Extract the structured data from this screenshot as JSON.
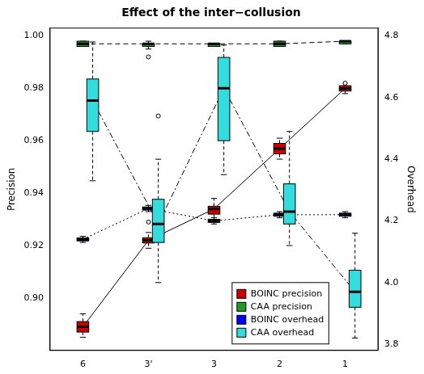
{
  "chart_data": {
    "type": "boxplot",
    "title": "Effect of the inter−collusion",
    "y_label": "Precision",
    "y2_label": "Overhead",
    "categories": [
      "6",
      "3'",
      "3",
      "2",
      "1"
    ],
    "ylim": [
      0.88,
      1.003
    ],
    "yticks": [
      {
        "value": 0.9,
        "label": "0.90"
      },
      0.92,
      0.94,
      0.96,
      0.98,
      {
        "value": 1.0,
        "label": "1.00"
      }
    ],
    "y2lim": [
      3.78,
      4.825
    ],
    "y2ticks": [
      3.8,
      {
        "value": 4.0,
        "label": "4.0"
      },
      4.2,
      4.4,
      4.6,
      4.8
    ],
    "grid": false,
    "legend": "bottom right",
    "series": [
      {
        "name": "BOINC precision",
        "color": "#cc0000",
        "line_style": "solid",
        "values": [
          {
            "min": 0.885,
            "q1": 0.887,
            "median": 0.889,
            "q3": 0.891,
            "max": 0.894,
            "outliers": []
          },
          {
            "min": 0.919,
            "q1": 0.921,
            "median": 0.922,
            "q3": 0.923,
            "max": 0.925,
            "outliers": [
              0.929
            ]
          },
          {
            "min": 0.93,
            "q1": 0.932,
            "median": 0.934,
            "q3": 0.935,
            "max": 0.938,
            "outliers": []
          },
          {
            "min": 0.953,
            "q1": 0.955,
            "median": 0.957,
            "q3": 0.959,
            "max": 0.961,
            "outliers": []
          },
          {
            "min": 0.978,
            "q1": 0.979,
            "median": 0.98,
            "q3": 0.981,
            "max": 0.981,
            "outliers": [
              0.982
            ]
          }
        ]
      },
      {
        "name": "CAA precision",
        "color": "#229922",
        "line_style": "dashed",
        "values": [
          {
            "min": 0.996,
            "q1": 0.996,
            "median": 0.997,
            "q3": 0.998,
            "max": 0.998,
            "outliers": []
          },
          {
            "min": 0.995,
            "q1": 0.996,
            "median": 0.997,
            "q3": 0.997,
            "max": 0.998,
            "outliers": [
              0.992
            ]
          },
          {
            "min": 0.996,
            "q1": 0.996,
            "median": 0.997,
            "q3": 0.997,
            "max": 0.997,
            "outliers": []
          },
          {
            "min": 0.996,
            "q1": 0.996,
            "median": 0.997,
            "q3": 0.998,
            "max": 0.998,
            "outliers": []
          },
          {
            "min": 0.997,
            "q1": 0.997,
            "median": 0.998,
            "q3": 0.998,
            "max": 0.998,
            "outliers": []
          }
        ]
      },
      {
        "name": "BOINC overhead",
        "color": "#0000ff",
        "line_style": "dotted",
        "axis": "y2",
        "values": [
          {
            "min": 4.13,
            "q1": 4.135,
            "median": 4.14,
            "q3": 4.145,
            "max": 4.15,
            "outliers": []
          },
          {
            "min": 4.23,
            "q1": 4.235,
            "median": 4.24,
            "q3": 4.245,
            "max": 4.25,
            "outliers": []
          },
          {
            "min": 4.19,
            "q1": 4.195,
            "median": 4.2,
            "q3": 4.205,
            "max": 4.21,
            "outliers": []
          },
          {
            "min": 4.21,
            "q1": 4.215,
            "median": 4.22,
            "q3": 4.225,
            "max": 4.23,
            "outliers": []
          },
          {
            "min": 4.21,
            "q1": 4.215,
            "median": 4.22,
            "q3": 4.225,
            "max": 4.23,
            "outliers": []
          }
        ]
      },
      {
        "name": "CAA overhead",
        "color": "#33dddd",
        "line_style": "dashdot",
        "axis": "y2",
        "values": [
          {
            "min": 4.33,
            "q1": 4.49,
            "median": 4.59,
            "q3": 4.66,
            "max": 4.78,
            "outliers": []
          },
          {
            "min": 4.0,
            "q1": 4.13,
            "median": 4.19,
            "q3": 4.27,
            "max": 4.4,
            "outliers": [
              4.54
            ]
          },
          {
            "min": 4.35,
            "q1": 4.46,
            "median": 4.63,
            "q3": 4.73,
            "max": 4.77,
            "outliers": []
          },
          {
            "min": 4.12,
            "q1": 4.19,
            "median": 4.23,
            "q3": 4.32,
            "max": 4.49,
            "outliers": []
          },
          {
            "min": 3.82,
            "q1": 3.92,
            "median": 3.97,
            "q3": 4.04,
            "max": 4.16,
            "outliers": []
          }
        ]
      }
    ]
  }
}
